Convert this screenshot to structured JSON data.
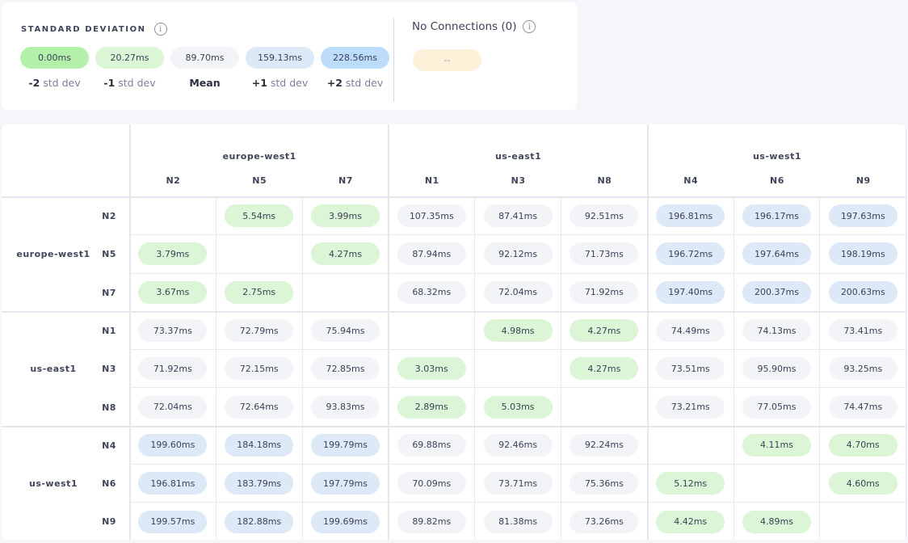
{
  "legend": {
    "title": "STANDARD DEVIATION",
    "info_icon": "info-icon",
    "pills": [
      {
        "value": "0.00ms",
        "label_strong": "-2",
        "label": " std dev",
        "color": "#b3f0a9"
      },
      {
        "value": "20.27ms",
        "label_strong": "-1",
        "label": " std dev",
        "color": "#dbf5d6"
      },
      {
        "value": "89.70ms",
        "label_strong": "Mean",
        "label": "",
        "color": "#f2f4f8"
      },
      {
        "value": "159.13ms",
        "label_strong": "+1",
        "label": " std dev",
        "color": "#dde9f7"
      },
      {
        "value": "228.56ms",
        "label_strong": "+2",
        "label": " std dev",
        "color": "#bbdcfb"
      }
    ],
    "no_connections": {
      "title": "No Connections (0)",
      "value": "--",
      "color": "#fdf0d8"
    }
  },
  "matrix": {
    "regions": [
      {
        "name": "europe-west1",
        "nodes": [
          "N2",
          "N5",
          "N7"
        ]
      },
      {
        "name": "us-east1",
        "nodes": [
          "N1",
          "N3",
          "N8"
        ]
      },
      {
        "name": "us-west1",
        "nodes": [
          "N4",
          "N6",
          "N9"
        ]
      }
    ],
    "rows": [
      [
        "",
        "5.54ms",
        "3.99ms",
        "107.35ms",
        "87.41ms",
        "92.51ms",
        "196.81ms",
        "196.17ms",
        "197.63ms"
      ],
      [
        "3.79ms",
        "",
        "4.27ms",
        "87.94ms",
        "92.12ms",
        "71.73ms",
        "196.72ms",
        "197.64ms",
        "198.19ms"
      ],
      [
        "3.67ms",
        "2.75ms",
        "",
        "68.32ms",
        "72.04ms",
        "71.92ms",
        "197.40ms",
        "200.37ms",
        "200.63ms"
      ],
      [
        "73.37ms",
        "72.79ms",
        "75.94ms",
        "",
        "4.98ms",
        "4.27ms",
        "74.49ms",
        "74.13ms",
        "73.41ms"
      ],
      [
        "71.92ms",
        "72.15ms",
        "72.85ms",
        "3.03ms",
        "",
        "4.27ms",
        "73.51ms",
        "95.90ms",
        "93.25ms"
      ],
      [
        "72.04ms",
        "72.64ms",
        "93.83ms",
        "2.89ms",
        "5.03ms",
        "",
        "73.21ms",
        "77.05ms",
        "74.47ms"
      ],
      [
        "199.60ms",
        "184.18ms",
        "199.79ms",
        "69.88ms",
        "92.46ms",
        "92.24ms",
        "",
        "4.11ms",
        "4.70ms"
      ],
      [
        "196.81ms",
        "183.79ms",
        "197.79ms",
        "70.09ms",
        "73.71ms",
        "75.36ms",
        "5.12ms",
        "",
        "4.60ms"
      ],
      [
        "199.57ms",
        "182.88ms",
        "199.69ms",
        "89.82ms",
        "81.38ms",
        "73.26ms",
        "4.42ms",
        "4.89ms",
        ""
      ]
    ],
    "colors": {
      "green": "#dbf5d6",
      "gray": "#f2f4f8",
      "blue": "#dde9f7"
    }
  }
}
